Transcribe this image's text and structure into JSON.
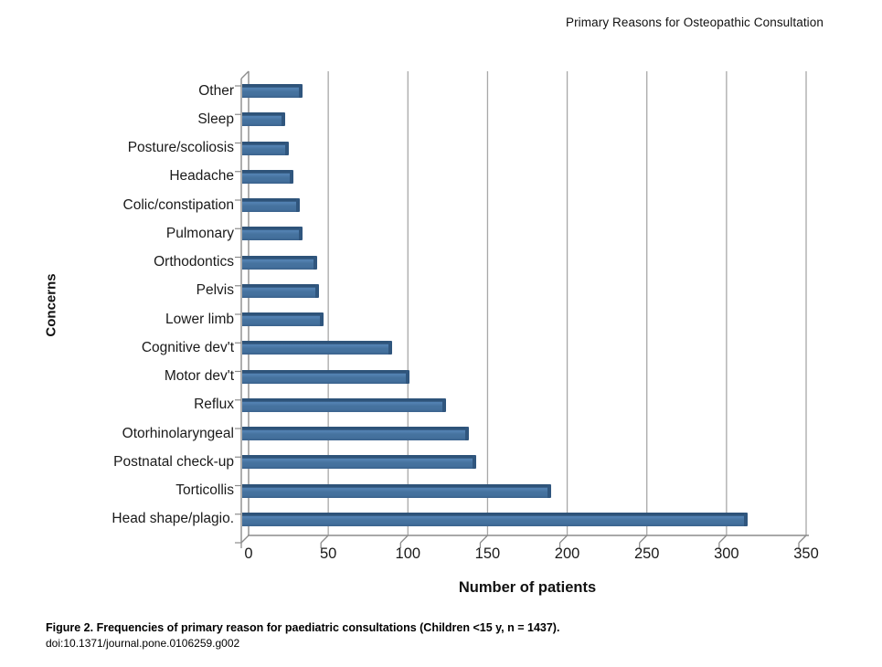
{
  "page": {
    "header_title": "Primary Reasons for Osteopathic Consultation",
    "caption_bold": "Figure 2. Frequencies of primary reason for paediatric consultations (Children <15 y, n = 1437).",
    "caption_doi": "doi:10.1371/journal.pone.0106259.g002"
  },
  "chart_data": {
    "type": "bar",
    "orientation": "horizontal",
    "title": "Primary Reasons for Osteopathic Consultation",
    "xlabel": "Number of patients",
    "ylabel": "Concerns",
    "xlim": [
      0,
      350
    ],
    "x_ticks": [
      0,
      50,
      100,
      150,
      200,
      250,
      300,
      350
    ],
    "grid": true,
    "legend": "none",
    "bar_color": "#44709d",
    "bar_edge_color": "#2e5379",
    "axis_color": "#8c8c8c",
    "gridline_color": "#a8a8a8",
    "categories_top_to_bottom": [
      "Other",
      "Sleep",
      "Posture/scoliosis",
      "Headache",
      "Colic/constipation",
      "Pulmonary",
      "Orthodontics",
      "Pelvis",
      "Lower limb",
      "Cognitive dev't",
      "Motor dev't",
      "Reflux",
      "Otorhinolaryngeal",
      "Postnatal check-up",
      "Torticollis",
      "Head shape/plagio."
    ],
    "values": [
      34,
      23,
      25,
      28,
      32,
      34,
      43,
      44,
      47,
      90,
      101,
      124,
      138,
      143,
      190,
      313
    ]
  }
}
